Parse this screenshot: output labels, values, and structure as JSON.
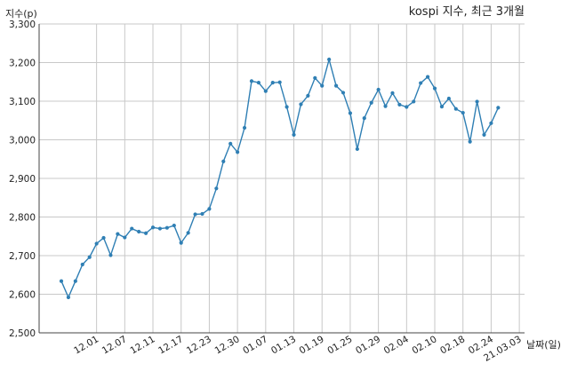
{
  "chart_data": {
    "type": "line",
    "title": "kospi 지수, 최근 3개월",
    "ylabel": "지수(p)",
    "xlabel": "날짜(일)",
    "ylim": [
      2500,
      3300
    ],
    "yticks": [
      "2,500",
      "2,600",
      "2,700",
      "2,800",
      "2,900",
      "3,000",
      "3,100",
      "3,200",
      "3,300"
    ],
    "grid": true,
    "x_tick_labels": [
      {
        "i": 5,
        "label": "12.01"
      },
      {
        "i": 9,
        "label": "12.07"
      },
      {
        "i": 13,
        "label": "12.11"
      },
      {
        "i": 17,
        "label": "12.17"
      },
      {
        "i": 21,
        "label": "12.23"
      },
      {
        "i": 25,
        "label": "12.30"
      },
      {
        "i": 29,
        "label": "01.07"
      },
      {
        "i": 33,
        "label": "01.13"
      },
      {
        "i": 37,
        "label": "01.19"
      },
      {
        "i": 41,
        "label": "01.25"
      },
      {
        "i": 45,
        "label": "01.29"
      },
      {
        "i": 49,
        "label": "02.04"
      },
      {
        "i": 53,
        "label": "02.10"
      },
      {
        "i": 57,
        "label": "02.18"
      },
      {
        "i": 61,
        "label": "02.24"
      },
      {
        "i": 65,
        "label": "21.03.03"
      }
    ],
    "series": [
      {
        "values": [
          2634,
          2592,
          2634,
          2677,
          2696,
          2731,
          2746,
          2701,
          2756,
          2747,
          2770,
          2762,
          2758,
          2773,
          2770,
          2772,
          2778,
          2733,
          2759,
          2807,
          2808,
          2821,
          2874,
          2944,
          2990,
          2968,
          3031,
          3152,
          3148,
          3126,
          3148,
          3149,
          3085,
          3013,
          3092,
          3114,
          3160,
          3140,
          3208,
          3140,
          3122,
          3069,
          2976,
          3056,
          3096,
          3130,
          3087,
          3121,
          3091,
          3085,
          3099,
          3147,
          3163,
          3133,
          3086,
          3107,
          3080,
          3070,
          2995,
          3099,
          3013,
          3043,
          3083
        ]
      }
    ]
  }
}
